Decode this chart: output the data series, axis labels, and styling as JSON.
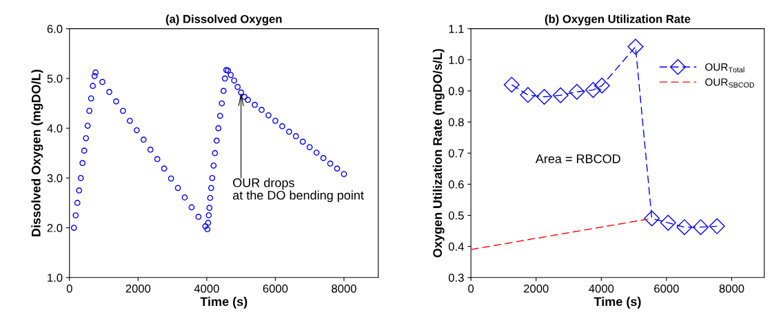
{
  "chart_data": [
    {
      "type": "scatter",
      "title": "(a) Dissolved Oxygen",
      "xlabel": "Time (s)",
      "ylabel": "Dissolved Oxygen (mgDO/L)",
      "xlim": [
        0,
        9000
      ],
      "ylim": [
        1,
        6
      ],
      "xticks": [
        0,
        2000,
        4000,
        6000,
        8000
      ],
      "yticks": [
        {
          "value": 1,
          "label": "1.0"
        },
        {
          "value": 2,
          "label": "2.0"
        },
        {
          "value": 3,
          "label": "3.0"
        },
        {
          "value": 4,
          "label": "4.0"
        },
        {
          "value": 5,
          "label": "5.0"
        },
        {
          "value": 6,
          "label": "6.0"
        }
      ],
      "grid": false,
      "marker": "circle",
      "series": [
        {
          "color": "#0000ff",
          "x": [
            130,
            180,
            230,
            280,
            330,
            380,
            430,
            480,
            530,
            580,
            630,
            680,
            730,
            760,
            960,
            1160,
            1360,
            1560,
            1760,
            1960,
            2160,
            2360,
            2560,
            2760,
            2960,
            3160,
            3360,
            3560,
            3760,
            3960,
            4020,
            4040,
            4060,
            4080,
            4100,
            4130,
            4160,
            4200,
            4240,
            4290,
            4340,
            4390,
            4440,
            4490,
            4530,
            4570,
            4620,
            4700,
            4800,
            4900,
            5000,
            5100,
            5200,
            5400,
            5600,
            5800,
            6000,
            6200,
            6400,
            6600,
            6800,
            7000,
            7200,
            7400,
            7600,
            7800,
            8000
          ],
          "values": [
            2.0,
            2.25,
            2.5,
            2.75,
            3.0,
            3.3,
            3.55,
            3.8,
            4.05,
            4.35,
            4.6,
            4.85,
            5.05,
            5.12,
            4.93,
            4.73,
            4.54,
            4.35,
            4.15,
            3.96,
            3.77,
            3.57,
            3.38,
            3.19,
            2.99,
            2.8,
            2.61,
            2.41,
            2.22,
            2.03,
            1.97,
            2.1,
            2.25,
            2.4,
            2.6,
            2.8,
            3.0,
            3.25,
            3.5,
            3.75,
            4.0,
            4.25,
            4.5,
            4.75,
            5.0,
            5.17,
            5.16,
            5.07,
            4.96,
            4.83,
            4.72,
            4.63,
            4.57,
            4.47,
            4.37,
            4.26,
            4.15,
            4.04,
            3.93,
            3.84,
            3.73,
            3.62,
            3.51,
            3.4,
            3.29,
            3.19,
            3.08
          ]
        }
      ],
      "annotations": [
        {
          "text": "OUR drops\nat the DO bending point",
          "x": 5000,
          "y": 4.72
        }
      ]
    },
    {
      "type": "line",
      "title": "(b) Oxygen Utilization Rate",
      "xlabel": "Time (s)",
      "ylabel": "Oxygen Utilization Rate (mgDO/s/L)",
      "xlim": [
        0,
        9000
      ],
      "ylim": [
        0.3,
        1.1
      ],
      "xticks": [
        0,
        2000,
        4000,
        6000,
        8000
      ],
      "yticks": [
        0.3,
        0.4,
        0.5,
        0.6,
        0.7,
        0.8,
        0.9,
        {
          "value": 1.0,
          "label": "1.0"
        },
        1.1
      ],
      "grid": false,
      "legend": "top right",
      "line_style": "dashed",
      "series": [
        {
          "name": "OUR$_{Total}$",
          "color": "#0000ff",
          "marker": "diamond",
          "x": [
            1250,
            1750,
            2250,
            2750,
            3250,
            3750,
            4020,
            5050,
            5550,
            6050,
            6550,
            7050,
            7550
          ],
          "values": [
            0.92,
            0.887,
            0.881,
            0.886,
            0.897,
            0.903,
            0.917,
            1.042,
            0.49,
            0.476,
            0.462,
            0.462,
            0.465
          ]
        },
        {
          "name": "OUR$_{SBCOD}$",
          "color": "#ff0000",
          "marker": "none",
          "x": [
            0,
            5550
          ],
          "values": [
            0.39,
            0.49
          ]
        }
      ],
      "annotations": [
        "Area = RBCOD"
      ]
    }
  ]
}
